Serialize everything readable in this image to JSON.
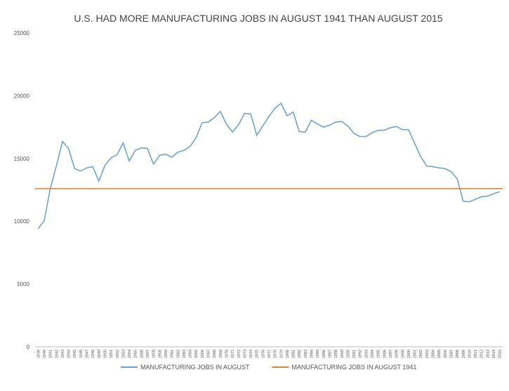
{
  "chart_data": {
    "type": "line",
    "title": "U.S. HAD MORE MANUFACTURING JOBS IN AUGUST 1941 THAN AUGUST 2015",
    "categories": [
      "1939",
      "1940",
      "1941",
      "1942",
      "1943",
      "1944",
      "1945",
      "1946",
      "1947",
      "1948",
      "1949",
      "1950",
      "1951",
      "1952",
      "1953",
      "1954",
      "1955",
      "1956",
      "1957",
      "1958",
      "1959",
      "1960",
      "1961",
      "1962",
      "1963",
      "1964",
      "1965",
      "1966",
      "1967",
      "1968",
      "1969",
      "1970",
      "1971",
      "1972",
      "1973",
      "1974",
      "1975",
      "1976",
      "1977",
      "1978",
      "1979",
      "1980",
      "1981",
      "1982",
      "1983",
      "1984",
      "1985",
      "1986",
      "1987",
      "1988",
      "1989",
      "1990",
      "1991",
      "1992",
      "1993",
      "1994",
      "1995",
      "1996",
      "1997",
      "1998",
      "1999",
      "2000",
      "2001",
      "2002",
      "2003",
      "2004",
      "2005",
      "2006",
      "2007",
      "2008",
      "2009",
      "2010",
      "2011",
      "2012",
      "2013",
      "2014",
      "2015"
    ],
    "series": [
      {
        "name": "MANUFACTURING JOBS IN AUGUST",
        "color": "#6fa3cf",
        "values": [
          9400,
          10050,
          12600,
          14400,
          16350,
          15800,
          14200,
          14000,
          14250,
          14350,
          13200,
          14450,
          15050,
          15300,
          16250,
          14800,
          15650,
          15850,
          15800,
          14550,
          15250,
          15350,
          15100,
          15500,
          15650,
          15950,
          16650,
          17850,
          17900,
          18250,
          18750,
          17750,
          17100,
          17700,
          18600,
          18550,
          16850,
          17600,
          18350,
          19000,
          19400,
          18400,
          18700,
          17150,
          17100,
          18050,
          17750,
          17500,
          17650,
          17900,
          17950,
          17600,
          17000,
          16750,
          16750,
          17050,
          17250,
          17250,
          17450,
          17550,
          17300,
          17300,
          16200,
          15150,
          14400,
          14350,
          14250,
          14200,
          13950,
          13400,
          11600,
          11550,
          11750,
          11950,
          12000,
          12200,
          12350
        ]
      }
    ],
    "reference_line": {
      "name": "MANUFACTURING JOBS IN AUGUST 1941",
      "color": "#c98b4a",
      "value": 12600
    },
    "ylim": [
      0,
      25000
    ],
    "yticks": [
      0,
      5000,
      10000,
      15000,
      20000,
      25000
    ],
    "grid": false
  }
}
